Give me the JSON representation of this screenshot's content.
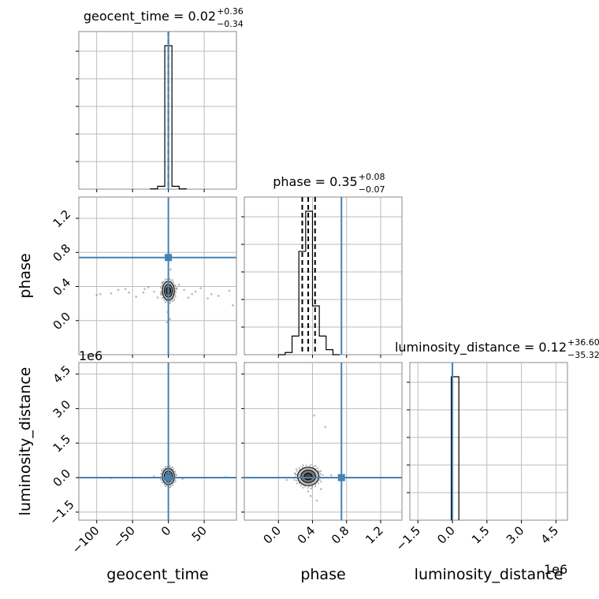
{
  "chart_data": {
    "type": "corner",
    "truth_color": "#4682b4",
    "hist_color": "#000000",
    "grid": true,
    "params": [
      {
        "name": "geocent_time",
        "axis_label": "geocent_time",
        "title": {
          "label": "geocent_time",
          "value": "0.02",
          "plus": "+0.36",
          "minus": "−0.34"
        },
        "range": [
          -125,
          95
        ],
        "ticks": [
          -100,
          -50,
          0,
          50
        ],
        "tick_labels": [
          "−100",
          "−50",
          "0",
          "50"
        ],
        "truth": 0,
        "quantile_lines": [
          0
        ],
        "hist_type": "histogram",
        "hist_bins": [
          [
            -25,
            -15,
            0.002
          ],
          [
            -15,
            -5,
            0.02
          ],
          [
            -5,
            5,
            1.0
          ],
          [
            5,
            15,
            0.02
          ],
          [
            15,
            25,
            0.002
          ]
        ]
      },
      {
        "name": "phase",
        "axis_label": "phase",
        "title": {
          "label": "phase",
          "value": "0.35",
          "plus": "+0.08",
          "minus": "−0.07"
        },
        "range": [
          -0.4,
          1.45
        ],
        "ticks": [
          0.0,
          0.4,
          0.8,
          1.2
        ],
        "tick_labels": [
          "0.0",
          "0.4",
          "0.8",
          "1.2"
        ],
        "truth": 0.74,
        "quantile_lines": [
          0.28,
          0.35,
          0.43
        ],
        "hist_type": "histogram",
        "hist_bins": [
          [
            0.0,
            0.08,
            0.0
          ],
          [
            0.08,
            0.16,
            0.015
          ],
          [
            0.16,
            0.24,
            0.13
          ],
          [
            0.24,
            0.32,
            0.72
          ],
          [
            0.32,
            0.4,
            1.0
          ],
          [
            0.4,
            0.48,
            0.34
          ],
          [
            0.48,
            0.56,
            0.13
          ],
          [
            0.56,
            0.64,
            0.035
          ],
          [
            0.64,
            0.72,
            0.0
          ]
        ]
      },
      {
        "name": "luminosity_distance",
        "axis_label": "luminosity_distance",
        "title": {
          "label": "luminosity_distance",
          "value": "0.12",
          "plus": "+36.60",
          "minus": "−35.32"
        },
        "range": [
          -1.85,
          5.0
        ],
        "ticks": [
          -1.5,
          0.0,
          1.5,
          3.0,
          4.5
        ],
        "tick_labels": [
          "−1.5",
          "0.0",
          "1.5",
          "3.0",
          "4.5"
        ],
        "offset_label": "1e6",
        "truth": 0.0,
        "quantile_lines": [
          0.0
        ],
        "hist_type": "histogram",
        "hist_bins": [
          [
            -0.05,
            0.28,
            1.0
          ]
        ]
      }
    ],
    "panels_2d": [
      {
        "x_param": "geocent_time",
        "y_param": "phase",
        "scatter": [
          [
            -3,
            0.3
          ],
          [
            4,
            0.35
          ],
          [
            -10,
            0.32
          ],
          [
            12,
            0.38
          ],
          [
            -20,
            0.34
          ],
          [
            22,
            0.36
          ],
          [
            -35,
            0.33
          ],
          [
            38,
            0.34
          ],
          [
            -55,
            0.33
          ],
          [
            60,
            0.31
          ],
          [
            -80,
            0.32
          ],
          [
            85,
            0.35
          ],
          [
            -45,
            0.28
          ],
          [
            45,
            0.38
          ],
          [
            -70,
            0.36
          ],
          [
            70,
            0.29
          ],
          [
            -95,
            0.31
          ],
          [
            2,
            0.02
          ],
          [
            -2,
            -0.02
          ],
          [
            1,
            0.75
          ],
          [
            -1,
            0.1
          ],
          [
            3,
            0.6
          ],
          [
            -15,
            0.27
          ],
          [
            15,
            0.42
          ],
          [
            -28,
            0.39
          ],
          [
            28,
            0.27
          ],
          [
            -8,
            0.45
          ],
          [
            8,
            0.24
          ],
          [
            -60,
            0.37
          ],
          [
            55,
            0.26
          ],
          [
            90,
            0.18
          ],
          [
            -100,
            0.3
          ],
          [
            33,
            0.31
          ],
          [
            -33,
            0.37
          ]
        ],
        "density_core": {
          "x": 0,
          "y": 0.35,
          "sx": 3,
          "sy": 0.05
        }
      },
      {
        "x_param": "geocent_time",
        "y_param": "luminosity_distance",
        "scatter": [
          [
            -40,
            0.0
          ],
          [
            40,
            0.0
          ],
          [
            -80,
            -0.02
          ],
          [
            80,
            0.02
          ],
          [
            -20,
            0.05
          ],
          [
            20,
            -0.05
          ]
        ],
        "density_core": {
          "x": 0,
          "y": 0.05,
          "sx": 3,
          "sy": 0.15
        }
      },
      {
        "x_param": "phase",
        "y_param": "luminosity_distance",
        "scatter": [
          [
            0.42,
            2.7
          ],
          [
            0.55,
            2.2
          ],
          [
            0.35,
            -0.6
          ],
          [
            0.45,
            -1.0
          ],
          [
            0.3,
            -0.3
          ],
          [
            0.5,
            -0.5
          ],
          [
            0.25,
            -0.2
          ],
          [
            0.62,
            0.1
          ],
          [
            0.1,
            -0.1
          ],
          [
            0.2,
            0.15
          ],
          [
            0.48,
            0.25
          ],
          [
            0.38,
            -0.8
          ]
        ],
        "density_core": {
          "x": 0.35,
          "y": 0.05,
          "sx": 0.06,
          "sy": 0.18
        }
      }
    ]
  }
}
